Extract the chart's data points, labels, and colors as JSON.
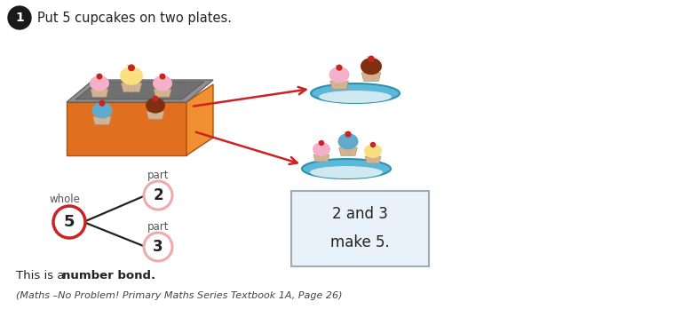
{
  "title_number": "1",
  "title_text": "Put 5 cupcakes on two plates.",
  "whole_label": "whole",
  "whole_value": "5",
  "part_label": "part",
  "part1_value": "2",
  "part2_value": "3",
  "box_text_line1": "2 and 3",
  "box_text_line2": "make 5.",
  "bottom_text_normal": "This is a ",
  "bottom_text_bold": "number bond.",
  "footer_text": "(Maths –No Problem! Primary Maths Series Textbook 1A, Page 26)",
  "bg_color": "#ffffff",
  "whole_circle_edge": "#cc2222",
  "part_circle_edge": "#f0aaaa",
  "circle_fill": "#ffffff",
  "box_fill": "#e8f2f8",
  "box_edge": "#a0aab4",
  "arrow_color": "#cc2222",
  "line_color": "#222222",
  "text_color": "#222222",
  "gray_text": "#555555",
  "cupcake_box_orange": "#e07020",
  "cupcake_box_orange_right": "#f09030",
  "cupcake_box_gray": "#8a8a8a",
  "plate_color": "#5ab8d8",
  "plate_top_color": "#d0e8f0"
}
